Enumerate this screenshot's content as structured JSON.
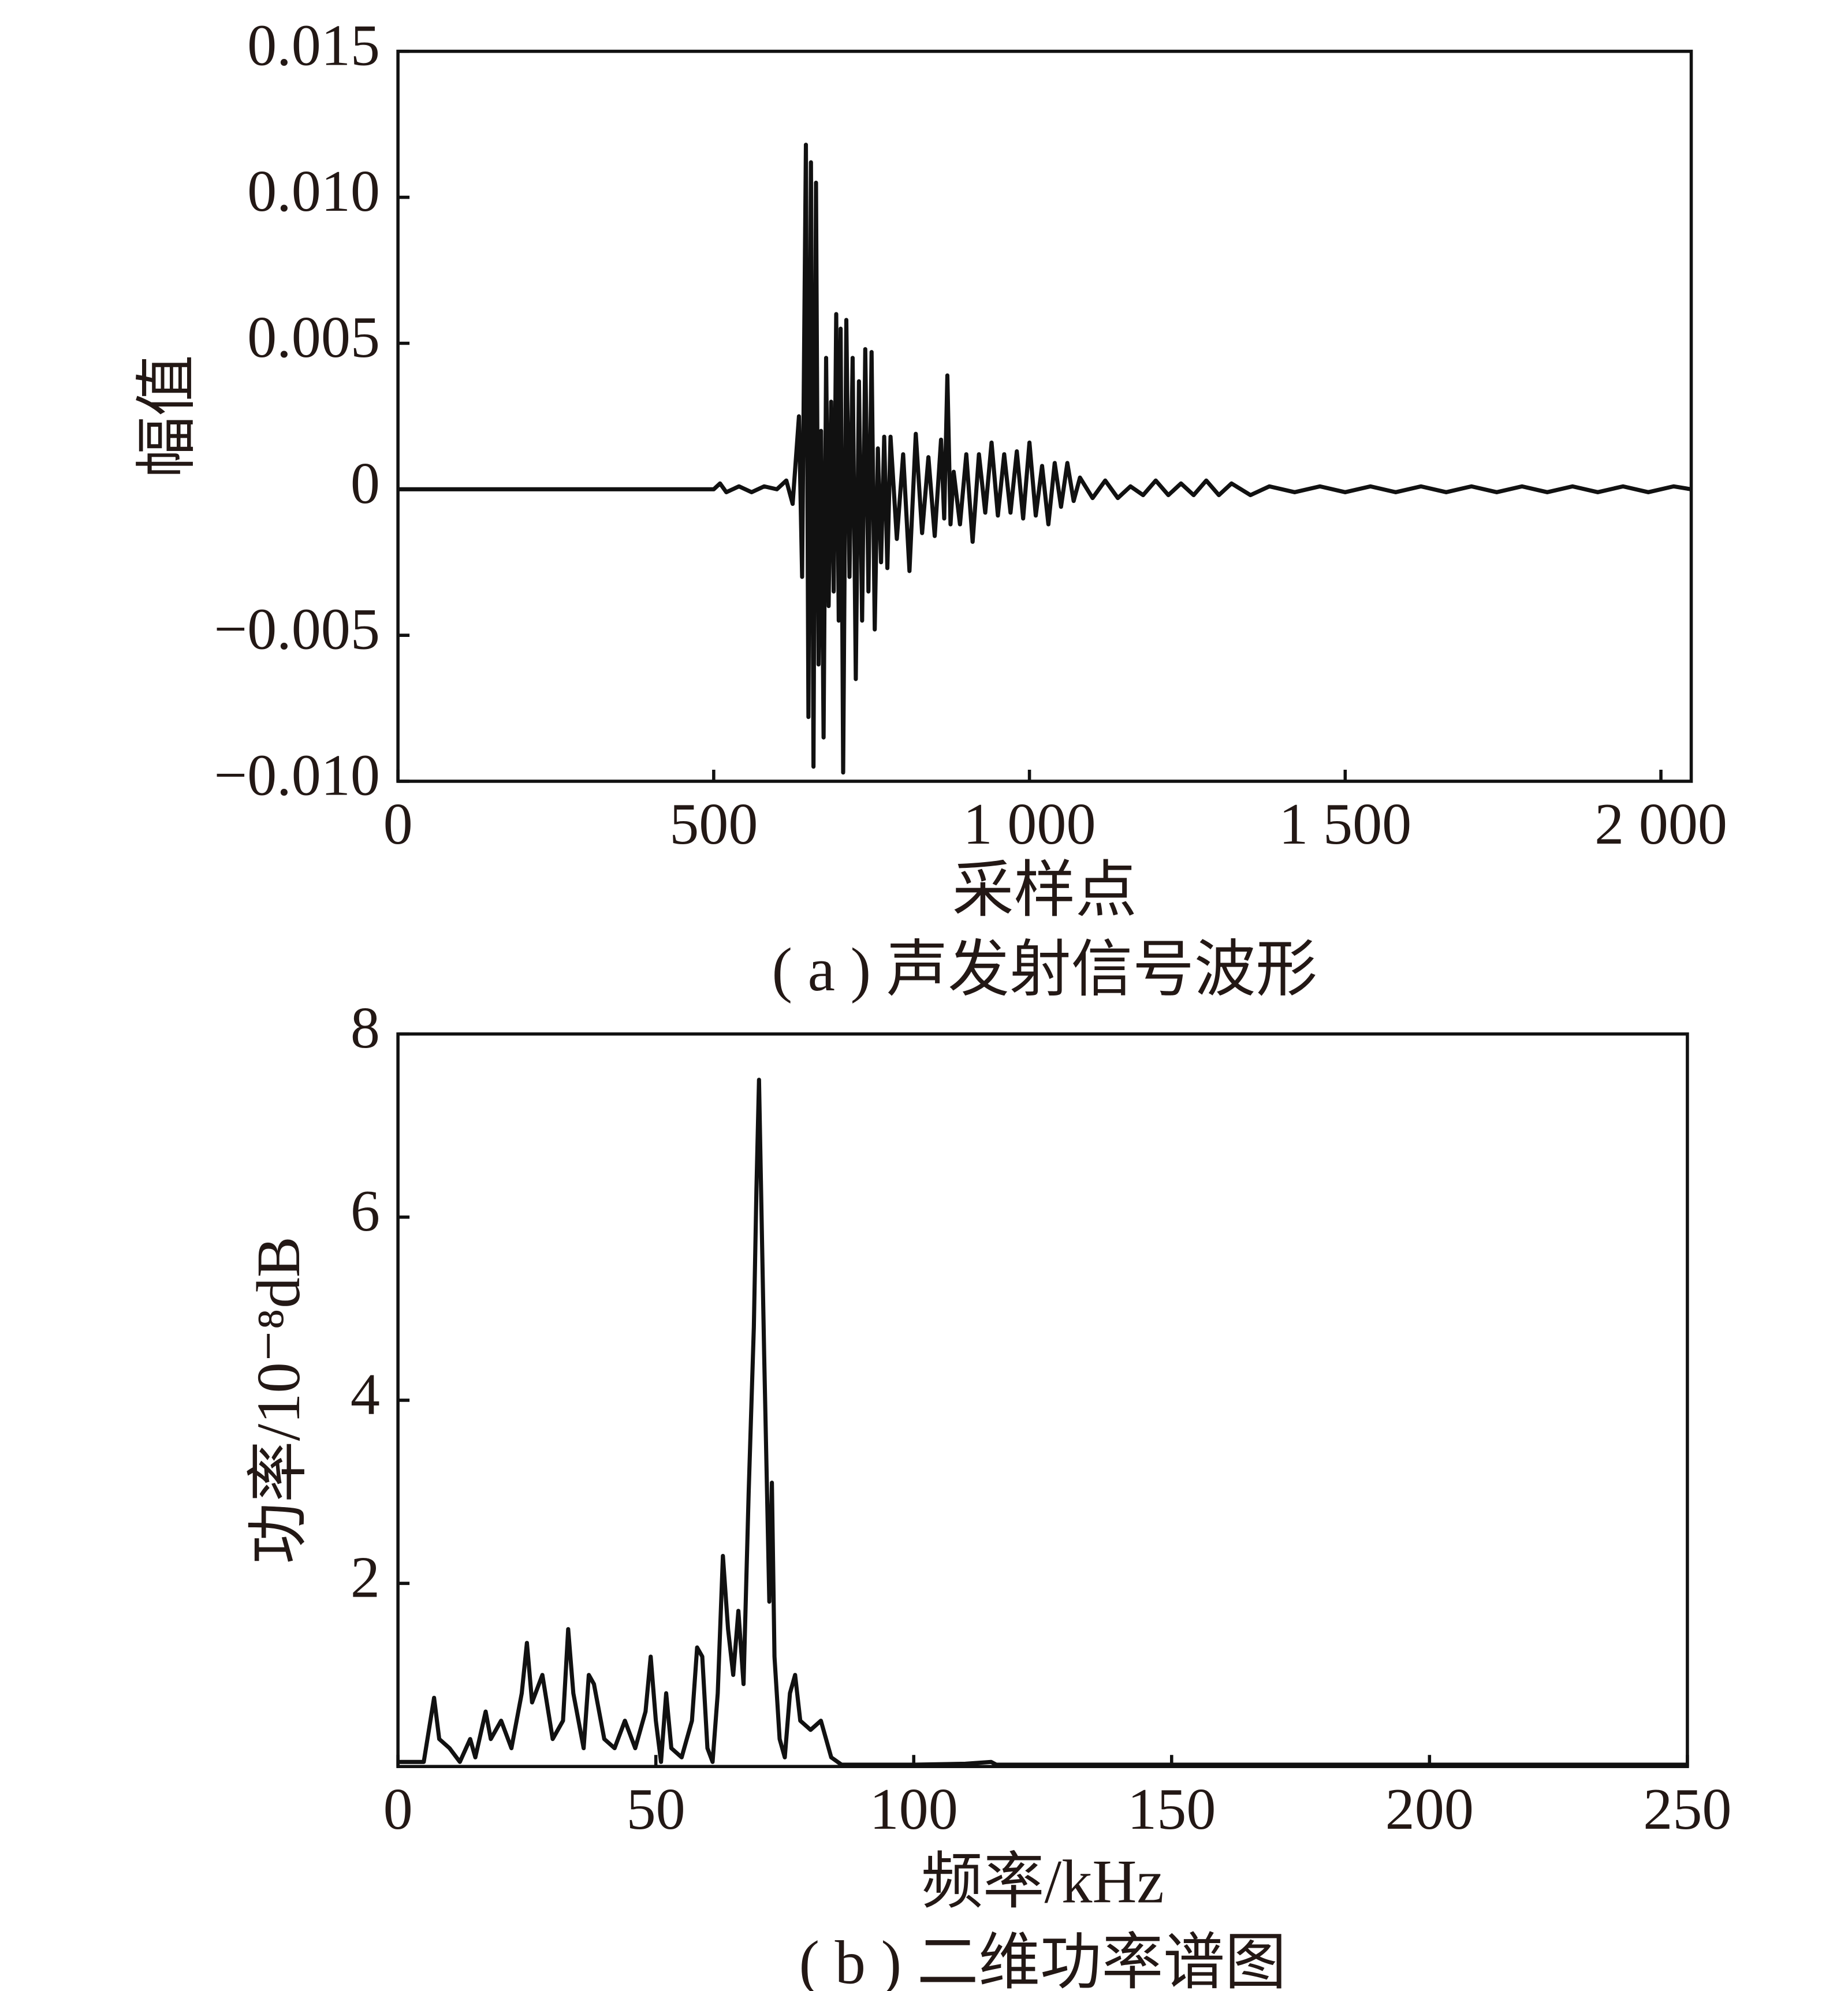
{
  "chart_data": [
    {
      "type": "line",
      "color": "#111111",
      "xlabel": "采样点",
      "ylabel": "幅值",
      "caption": "( a ) 声发射信号波形",
      "xlim": [
        0,
        2048
      ],
      "ylim": [
        -0.01,
        0.015
      ],
      "xticks": [
        0,
        500,
        {
          "value": 1000,
          "label": "1 000"
        },
        {
          "value": 1500,
          "label": "1 500"
        },
        {
          "value": 2000,
          "label": "2 000"
        }
      ],
      "yticks": [
        {
          "value": -0.01,
          "label": "−0.010"
        },
        {
          "value": -0.005,
          "label": "−0.005"
        },
        0,
        {
          "value": 0.005,
          "label": "0.005"
        },
        {
          "value": 0.01,
          "label": "0.010"
        },
        {
          "value": 0.015,
          "label": "0.015"
        }
      ],
      "x": [
        0,
        500,
        510,
        520,
        540,
        560,
        580,
        600,
        615,
        625,
        635,
        640,
        646,
        650,
        654,
        658,
        662,
        666,
        670,
        674,
        678,
        682,
        686,
        690,
        694,
        698,
        701,
        705,
        710,
        715,
        720,
        725,
        730,
        735,
        740,
        745,
        750,
        755,
        760,
        765,
        770,
        775,
        780,
        790,
        800,
        810,
        820,
        830,
        840,
        850,
        860,
        865,
        870,
        875,
        880,
        890,
        900,
        910,
        920,
        930,
        940,
        950,
        960,
        970,
        980,
        990,
        1000,
        1010,
        1020,
        1030,
        1040,
        1050,
        1060,
        1070,
        1080,
        1100,
        1120,
        1140,
        1160,
        1180,
        1200,
        1220,
        1240,
        1260,
        1280,
        1300,
        1320,
        1350,
        1380,
        1420,
        1460,
        1500,
        1540,
        1580,
        1620,
        1660,
        1700,
        1740,
        1780,
        1820,
        1860,
        1900,
        1940,
        1980,
        2020,
        2048
      ],
      "values": [
        0,
        0,
        0.0002,
        -0.0001,
        0.0001,
        -0.0001,
        0.0001,
        0,
        0.0003,
        -0.0005,
        0.0025,
        -0.003,
        0.0118,
        -0.0078,
        0.0112,
        -0.0095,
        0.0105,
        -0.006,
        0.002,
        -0.0085,
        0.0045,
        -0.004,
        0.003,
        -0.0035,
        0.006,
        -0.0045,
        0.0055,
        -0.0097,
        0.0058,
        -0.003,
        0.0045,
        -0.0065,
        0.0037,
        -0.0045,
        0.0048,
        -0.0035,
        0.0047,
        -0.0048,
        0.0014,
        -0.0025,
        0.0018,
        -0.0027,
        0.0018,
        -0.0017,
        0.0012,
        -0.0028,
        0.0019,
        -0.0015,
        0.0011,
        -0.0016,
        0.0017,
        -0.001,
        0.0039,
        -0.0012,
        0.0006,
        -0.0012,
        0.0012,
        -0.0018,
        0.0012,
        -0.0008,
        0.0016,
        -0.0009,
        0.0012,
        -0.0008,
        0.0013,
        -0.001,
        0.0016,
        -0.0009,
        0.0008,
        -0.0012,
        0.0009,
        -0.0006,
        0.0009,
        -0.0004,
        0.0004,
        -0.0003,
        0.0003,
        -0.0003,
        0.0001,
        -0.0002,
        0.0003,
        -0.0002,
        0.0002,
        -0.0002,
        0.0003,
        -0.0002,
        0.0002,
        -0.0002,
        0.0001,
        -0.0001,
        0.0001,
        -0.0001,
        0.0001,
        -0.0001,
        0.0001,
        -0.0001,
        0.0001,
        -0.0001,
        0.0001,
        -0.0001,
        0.0001,
        -0.0001,
        0.0001,
        -0.0001,
        0.0001,
        0
      ]
    },
    {
      "type": "line",
      "color": "#111111",
      "xlabel": "频率/kHz",
      "ylabel": "功率/10⁻⁸dB",
      "caption": "( b ) 二维功率谱图",
      "xlim": [
        0,
        250
      ],
      "ylim": [
        0,
        8
      ],
      "xticks": [
        0,
        50,
        100,
        150,
        200,
        250
      ],
      "yticks": [
        2,
        4,
        6,
        8
      ],
      "x": [
        0,
        5,
        7,
        8,
        10,
        12,
        14,
        15,
        17,
        18,
        20,
        22,
        24,
        25,
        26,
        28,
        30,
        32,
        33,
        34,
        36,
        37,
        38,
        40,
        42,
        44,
        46,
        48,
        49,
        50,
        51,
        52,
        53,
        55,
        57,
        58,
        59,
        60,
        61,
        62,
        63,
        64,
        65,
        66,
        67,
        68,
        69,
        69.5,
        70,
        71,
        72,
        72.5,
        73,
        74,
        75,
        76,
        77,
        78,
        80,
        82,
        84,
        86,
        90,
        100,
        110,
        115,
        116,
        130,
        150,
        200,
        250
      ],
      "values": [
        0.05,
        0.05,
        0.75,
        0.3,
        0.2,
        0.05,
        0.3,
        0.1,
        0.6,
        0.3,
        0.5,
        0.2,
        0.8,
        1.35,
        0.7,
        1.0,
        0.3,
        0.5,
        1.5,
        0.8,
        0.2,
        1.0,
        0.9,
        0.3,
        0.2,
        0.5,
        0.2,
        0.6,
        1.2,
        0.5,
        0.05,
        0.8,
        0.2,
        0.1,
        0.5,
        1.3,
        1.2,
        0.2,
        0.05,
        0.8,
        2.3,
        1.5,
        1.0,
        1.7,
        0.9,
        3.0,
        4.8,
        6.3,
        7.5,
        4.5,
        1.8,
        3.1,
        1.2,
        0.3,
        0.1,
        0.8,
        1.0,
        0.5,
        0.4,
        0.5,
        0.1,
        0.02,
        0.02,
        0.02,
        0.03,
        0.05,
        0.02,
        0.02,
        0.02,
        0.02,
        0.02
      ]
    }
  ]
}
